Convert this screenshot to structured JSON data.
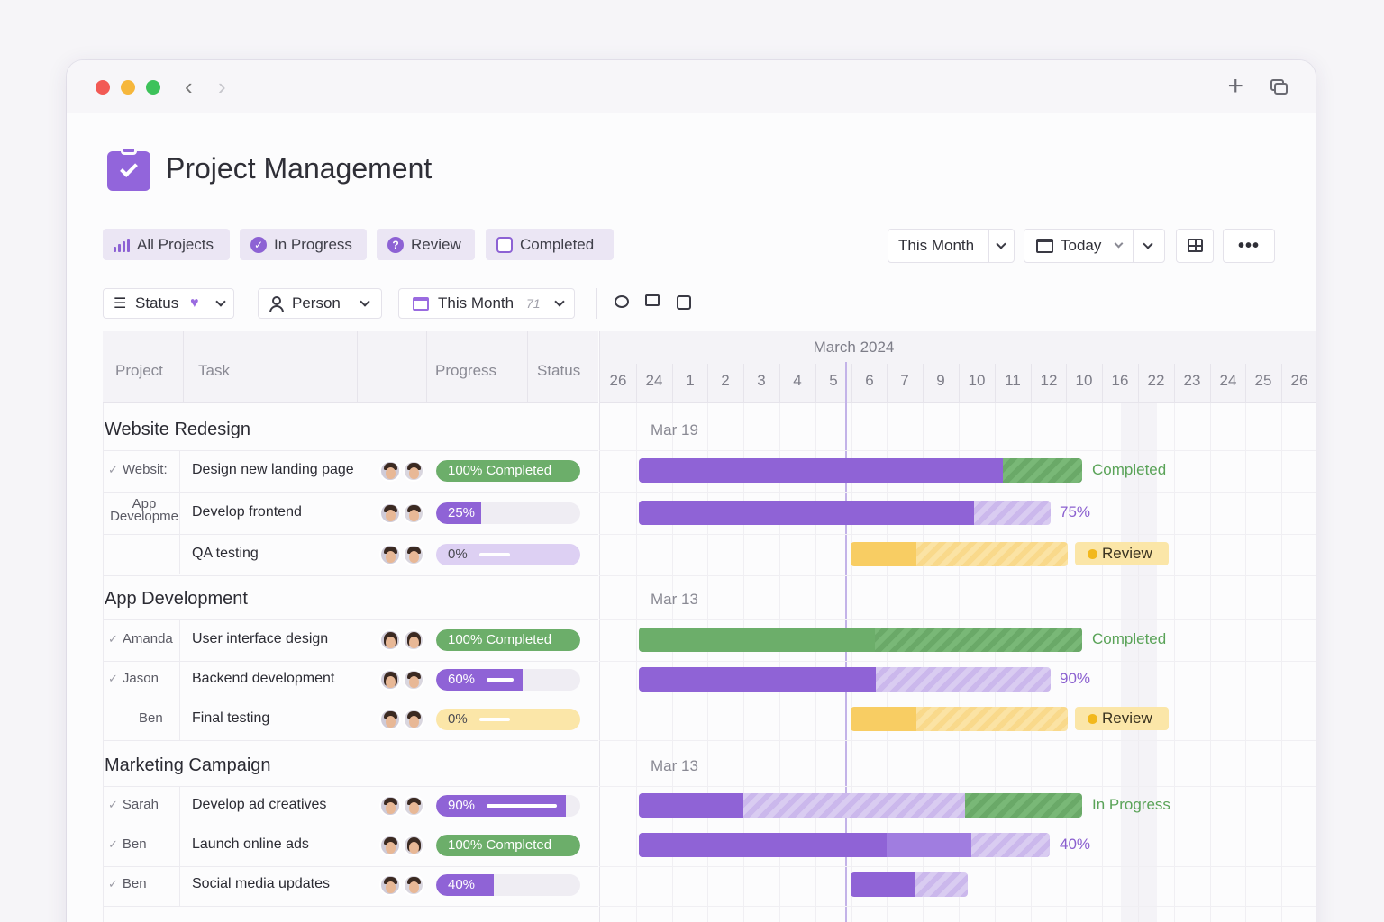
{
  "app": {
    "title": "Project Management"
  },
  "filters": [
    {
      "label": "All Projects",
      "icon": "bar-chart-icon"
    },
    {
      "label": "In Progress",
      "icon": "check-circle-icon"
    },
    {
      "label": "Review",
      "icon": "question-circle-icon"
    },
    {
      "label": "Completed",
      "icon": "completed-box-icon"
    }
  ],
  "view_controls": {
    "range_label": "This Month",
    "today_label": "Today"
  },
  "sub_controls": {
    "status_label": "Status",
    "person_label": "Person",
    "month_label": "This Month",
    "month_count": "71"
  },
  "table": {
    "headers": {
      "project": "Project",
      "task": "Task",
      "progress": "Progress",
      "status": "Status"
    }
  },
  "gantt": {
    "month": "March 2024",
    "days": [
      "26",
      "24",
      "1",
      "2",
      "3",
      "4",
      "5",
      "6",
      "7",
      "9",
      "10",
      "11",
      "12",
      "10",
      "16",
      "22",
      "23",
      "24",
      "25",
      "26"
    ]
  },
  "groups": [
    {
      "title": "Website Redesign",
      "date_label": "Mar 19",
      "rows": [
        {
          "project": "Websit:",
          "checked": true,
          "task": "Design new landing page",
          "progress_text": "100%  Completed",
          "progress": 100,
          "side_label": "Completed"
        },
        {
          "project": "App Developme",
          "checked": false,
          "task": "Develop frontend",
          "progress_text": "25%",
          "progress": 25,
          "side_label": "75%"
        },
        {
          "project": "",
          "checked": false,
          "task": "QA testing",
          "progress_text": "0%",
          "progress": 0,
          "side_label": "Review"
        }
      ]
    },
    {
      "title": "App Development",
      "date_label": "Mar 13",
      "rows": [
        {
          "project": "Amanda",
          "checked": true,
          "task": "User interface design",
          "progress_text": "100%  Completed",
          "progress": 100,
          "side_label": "Completed"
        },
        {
          "project": "Jason",
          "checked": true,
          "task": "Backend development",
          "progress_text": "60%",
          "progress": 60,
          "side_label": "90%"
        },
        {
          "project": "Ben",
          "checked": false,
          "task": "Final testing",
          "progress_text": "0%",
          "progress": 0,
          "side_label": "Review"
        }
      ]
    },
    {
      "title": "Marketing Campaign",
      "date_label": "Mar 13",
      "rows": [
        {
          "project": "Sarah",
          "checked": true,
          "task": "Develop ad creatives",
          "progress_text": "90%",
          "progress": 90,
          "side_label": "In Progress"
        },
        {
          "project": "Ben",
          "checked": true,
          "task": "Launch online ads",
          "progress_text": "100%  Completed",
          "progress": 100,
          "side_label": "40%"
        },
        {
          "project": "Ben",
          "checked": true,
          "task": "Social media updates",
          "progress_text": "40%",
          "progress": 40,
          "side_label": ""
        }
      ]
    }
  ],
  "colors": {
    "accent": "#8f63d6",
    "completed": "#6cae6a",
    "review": "#f8cd63"
  }
}
